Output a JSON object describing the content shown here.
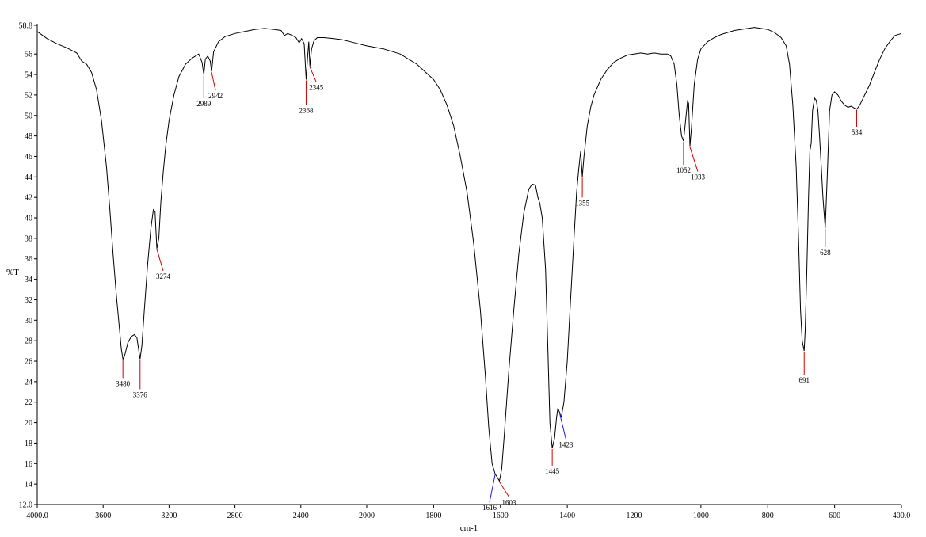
{
  "chart_data": {
    "type": "line",
    "title": "",
    "xlabel": "cm-1",
    "ylabel": "%T",
    "xlim": [
      4000,
      400
    ],
    "ylim": [
      12,
      58.8
    ],
    "x_reversed": true,
    "x_ticks": [
      "4000.0",
      "3600",
      "3200",
      "2800",
      "2400",
      "2000",
      "1800",
      "1600",
      "1400",
      "1200",
      "1000",
      "800",
      "600",
      "400.0"
    ],
    "y_ticks": [
      "58.8",
      "56",
      "54",
      "52",
      "50",
      "48",
      "46",
      "44",
      "42",
      "40",
      "38",
      "36",
      "34",
      "32",
      "30",
      "28",
      "26",
      "24",
      "22",
      "20",
      "18",
      "16",
      "14",
      "12.0"
    ],
    "grid": false,
    "line_color": "#000000",
    "marker_colors": {
      "red": "#d40000",
      "blue": "#1a1aff"
    },
    "series": [
      {
        "points": [
          [
            4000,
            58.2
          ],
          [
            3940,
            57.5
          ],
          [
            3880,
            57.0
          ],
          [
            3820,
            56.6
          ],
          [
            3760,
            56.1
          ],
          [
            3730,
            55.3
          ],
          [
            3700,
            55.0
          ],
          [
            3670,
            54.2
          ],
          [
            3640,
            52.5
          ],
          [
            3610,
            49.5
          ],
          [
            3580,
            45.0
          ],
          [
            3560,
            41.0
          ],
          [
            3540,
            36.5
          ],
          [
            3520,
            32.5
          ],
          [
            3500,
            29.0
          ],
          [
            3490,
            27.2
          ],
          [
            3480,
            26.2
          ],
          [
            3470,
            26.5
          ],
          [
            3450,
            27.8
          ],
          [
            3430,
            28.4
          ],
          [
            3410,
            28.6
          ],
          [
            3395,
            28.3
          ],
          [
            3385,
            27.2
          ],
          [
            3376,
            26.2
          ],
          [
            3365,
            27.5
          ],
          [
            3350,
            31.0
          ],
          [
            3330,
            35.5
          ],
          [
            3310,
            39.0
          ],
          [
            3295,
            40.8
          ],
          [
            3285,
            40.6
          ],
          [
            3274,
            37.0
          ],
          [
            3262,
            38.0
          ],
          [
            3250,
            41.5
          ],
          [
            3235,
            44.5
          ],
          [
            3220,
            47.0
          ],
          [
            3200,
            49.5
          ],
          [
            3170,
            52.0
          ],
          [
            3140,
            53.8
          ],
          [
            3100,
            55.0
          ],
          [
            3060,
            55.6
          ],
          [
            3020,
            56.0
          ],
          [
            3000,
            55.2
          ],
          [
            2989,
            54.0
          ],
          [
            2980,
            55.5
          ],
          [
            2965,
            55.8
          ],
          [
            2950,
            55.3
          ],
          [
            2942,
            54.3
          ],
          [
            2930,
            56.2
          ],
          [
            2900,
            57.2
          ],
          [
            2860,
            57.7
          ],
          [
            2800,
            58.0
          ],
          [
            2740,
            58.2
          ],
          [
            2680,
            58.4
          ],
          [
            2620,
            58.5
          ],
          [
            2560,
            58.4
          ],
          [
            2520,
            58.3
          ],
          [
            2500,
            57.8
          ],
          [
            2480,
            58.0
          ],
          [
            2450,
            57.8
          ],
          [
            2430,
            57.6
          ],
          [
            2410,
            57.1
          ],
          [
            2395,
            57.5
          ],
          [
            2380,
            57.0
          ],
          [
            2368,
            53.5
          ],
          [
            2360,
            55.5
          ],
          [
            2352,
            57.2
          ],
          [
            2345,
            54.8
          ],
          [
            2335,
            56.5
          ],
          [
            2320,
            57.3
          ],
          [
            2300,
            57.6
          ],
          [
            2260,
            57.6
          ],
          [
            2200,
            57.5
          ],
          [
            2150,
            57.4
          ],
          [
            2100,
            57.2
          ],
          [
            2050,
            57.0
          ],
          [
            2000,
            56.8
          ],
          [
            1950,
            56.5
          ],
          [
            1900,
            56.0
          ],
          [
            1850,
            55.0
          ],
          [
            1800,
            53.5
          ],
          [
            1780,
            52.5
          ],
          [
            1760,
            51.0
          ],
          [
            1740,
            49.0
          ],
          [
            1720,
            46.0
          ],
          [
            1700,
            42.5
          ],
          [
            1680,
            37.5
          ],
          [
            1660,
            31.0
          ],
          [
            1645,
            24.5
          ],
          [
            1635,
            19.5
          ],
          [
            1625,
            16.0
          ],
          [
            1616,
            15.0
          ],
          [
            1610,
            14.7
          ],
          [
            1603,
            14.3
          ],
          [
            1596,
            15.5
          ],
          [
            1588,
            19.0
          ],
          [
            1575,
            25.0
          ],
          [
            1560,
            31.0
          ],
          [
            1545,
            36.5
          ],
          [
            1530,
            40.5
          ],
          [
            1515,
            42.8
          ],
          [
            1505,
            43.3
          ],
          [
            1495,
            43.2
          ],
          [
            1488,
            42.0
          ],
          [
            1482,
            41.4
          ],
          [
            1475,
            40.0
          ],
          [
            1465,
            35.0
          ],
          [
            1458,
            27.0
          ],
          [
            1452,
            20.0
          ],
          [
            1445,
            17.5
          ],
          [
            1438,
            18.5
          ],
          [
            1432,
            20.5
          ],
          [
            1428,
            21.4
          ],
          [
            1423,
            21.0
          ],
          [
            1418,
            20.5
          ],
          [
            1410,
            22.0
          ],
          [
            1400,
            26.0
          ],
          [
            1390,
            32.0
          ],
          [
            1380,
            38.0
          ],
          [
            1372,
            42.5
          ],
          [
            1365,
            45.0
          ],
          [
            1360,
            46.5
          ],
          [
            1355,
            44.0
          ],
          [
            1350,
            46.0
          ],
          [
            1340,
            49.0
          ],
          [
            1330,
            50.8
          ],
          [
            1320,
            52.0
          ],
          [
            1300,
            53.5
          ],
          [
            1280,
            54.5
          ],
          [
            1260,
            55.2
          ],
          [
            1240,
            55.6
          ],
          [
            1220,
            55.9
          ],
          [
            1200,
            56.0
          ],
          [
            1180,
            56.1
          ],
          [
            1160,
            56.0
          ],
          [
            1140,
            56.1
          ],
          [
            1120,
            56.0
          ],
          [
            1100,
            56.0
          ],
          [
            1090,
            55.8
          ],
          [
            1080,
            55.0
          ],
          [
            1072,
            53.0
          ],
          [
            1065,
            50.0
          ],
          [
            1058,
            48.0
          ],
          [
            1052,
            47.5
          ],
          [
            1046,
            49.5
          ],
          [
            1040,
            51.4
          ],
          [
            1037,
            51.2
          ],
          [
            1033,
            47.0
          ],
          [
            1028,
            49.0
          ],
          [
            1020,
            53.0
          ],
          [
            1010,
            55.5
          ],
          [
            1000,
            56.5
          ],
          [
            980,
            57.2
          ],
          [
            960,
            57.6
          ],
          [
            940,
            57.9
          ],
          [
            920,
            58.1
          ],
          [
            900,
            58.3
          ],
          [
            880,
            58.4
          ],
          [
            860,
            58.5
          ],
          [
            840,
            58.6
          ],
          [
            820,
            58.5
          ],
          [
            800,
            58.4
          ],
          [
            780,
            58.1
          ],
          [
            760,
            57.6
          ],
          [
            745,
            56.8
          ],
          [
            735,
            55.0
          ],
          [
            725,
            51.0
          ],
          [
            715,
            45.0
          ],
          [
            708,
            38.0
          ],
          [
            702,
            31.0
          ],
          [
            697,
            28.0
          ],
          [
            691,
            27.0
          ],
          [
            688,
            29.0
          ],
          [
            683,
            35.0
          ],
          [
            678,
            42.0
          ],
          [
            674,
            46.5
          ],
          [
            670,
            47.3
          ],
          [
            666,
            50.5
          ],
          [
            660,
            51.7
          ],
          [
            655,
            51.5
          ],
          [
            650,
            50.5
          ],
          [
            645,
            48.0
          ],
          [
            640,
            45.0
          ],
          [
            635,
            42.0
          ],
          [
            628,
            39.0
          ],
          [
            622,
            44.0
          ],
          [
            615,
            50.5
          ],
          [
            608,
            52.0
          ],
          [
            600,
            52.3
          ],
          [
            590,
            52.0
          ],
          [
            580,
            51.4
          ],
          [
            570,
            51.0
          ],
          [
            560,
            50.8
          ],
          [
            550,
            50.9
          ],
          [
            540,
            50.7
          ],
          [
            534,
            50.6
          ],
          [
            525,
            51.0
          ],
          [
            510,
            52.0
          ],
          [
            495,
            53.0
          ],
          [
            480,
            54.3
          ],
          [
            465,
            55.5
          ],
          [
            450,
            56.5
          ],
          [
            435,
            57.2
          ],
          [
            420,
            57.8
          ],
          [
            400,
            58.0
          ]
        ]
      }
    ],
    "annotations": [
      {
        "label": "3480",
        "x": 3480,
        "y": 26.2,
        "color": "red"
      },
      {
        "label": "3376",
        "x": 3376,
        "y": 26.2,
        "color": "red"
      },
      {
        "label": "3274",
        "x": 3274,
        "y": 37.0,
        "color": "red"
      },
      {
        "label": "2989",
        "x": 2989,
        "y": 54.0,
        "color": "red"
      },
      {
        "label": "2942",
        "x": 2942,
        "y": 54.3,
        "color": "red"
      },
      {
        "label": "2368",
        "x": 2368,
        "y": 53.5,
        "color": "red"
      },
      {
        "label": "2345",
        "x": 2345,
        "y": 54.8,
        "color": "red"
      },
      {
        "label": "1616",
        "x": 1616,
        "y": 15.0,
        "color": "blue"
      },
      {
        "label": "1603",
        "x": 1603,
        "y": 14.3,
        "color": "red"
      },
      {
        "label": "1445",
        "x": 1445,
        "y": 17.5,
        "color": "red"
      },
      {
        "label": "1423",
        "x": 1423,
        "y": 21.0,
        "color": "blue"
      },
      {
        "label": "1355",
        "x": 1355,
        "y": 44.0,
        "color": "red"
      },
      {
        "label": "1052",
        "x": 1052,
        "y": 47.5,
        "color": "red"
      },
      {
        "label": "1033",
        "x": 1033,
        "y": 47.0,
        "color": "red"
      },
      {
        "label": "691",
        "x": 691,
        "y": 27.0,
        "color": "red"
      },
      {
        "label": "628",
        "x": 628,
        "y": 39.0,
        "color": "red"
      },
      {
        "label": "534",
        "x": 534,
        "y": 50.6,
        "color": "red"
      }
    ]
  }
}
